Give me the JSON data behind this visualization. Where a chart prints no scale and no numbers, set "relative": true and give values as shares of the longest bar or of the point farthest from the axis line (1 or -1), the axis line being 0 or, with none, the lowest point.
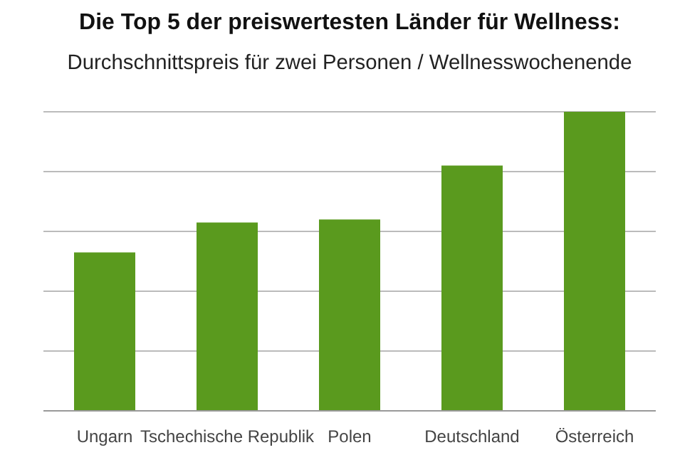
{
  "chart_data": {
    "type": "bar",
    "title": "Die Top 5 der preiswertesten Länder für Wellness:",
    "subtitle": "Durchschnittspreis für zwei Personen / Wellnesswochenende",
    "categories": [
      "Ungarn",
      "Tschechische Republik",
      "Polen",
      "Deutschland",
      "Österreich"
    ],
    "values": [
      0.53,
      0.63,
      0.64,
      0.82,
      1.0
    ],
    "color": "#5a9a1e",
    "relative": true,
    "grid": "y"
  }
}
